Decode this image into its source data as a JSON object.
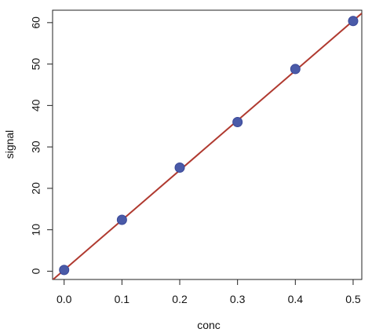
{
  "chart_data": {
    "type": "scatter",
    "title": "",
    "xlabel": "conc",
    "ylabel": "signal",
    "xlim": [
      -0.02,
      0.515
    ],
    "ylim": [
      -2,
      63
    ],
    "x_ticks": [
      0.0,
      0.1,
      0.2,
      0.3,
      0.4,
      0.5
    ],
    "x_tick_labels": [
      "0.0",
      "0.1",
      "0.2",
      "0.3",
      "0.4",
      "0.5"
    ],
    "y_ticks": [
      0,
      10,
      20,
      30,
      40,
      50,
      60
    ],
    "y_tick_labels": [
      "0",
      "10",
      "20",
      "30",
      "40",
      "50",
      "60"
    ],
    "grid": false,
    "series": [
      {
        "x": [
          0.0,
          0.1,
          0.2,
          0.3,
          0.4,
          0.5
        ],
        "y": [
          0.3,
          12.4,
          25.0,
          36.0,
          48.8,
          60.4
        ]
      }
    ],
    "fit_line": {
      "slope": 120.3,
      "intercept": 0.3
    },
    "colors": {
      "point_fill": "#4a5aa8",
      "point_stroke": "#3a4898",
      "fit_line": "#b03a30",
      "axis": "#222222"
    }
  }
}
